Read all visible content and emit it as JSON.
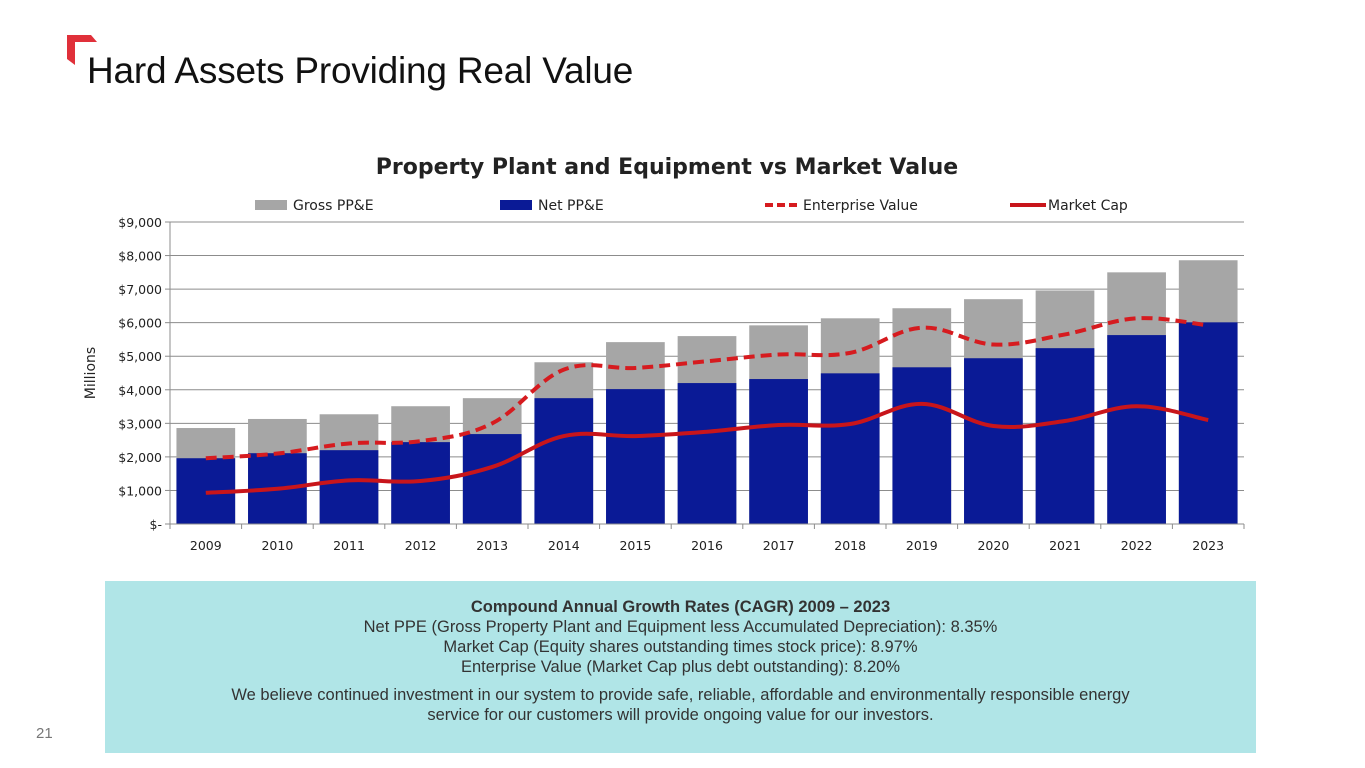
{
  "slide": {
    "title": "Hard Assets Providing Real Value",
    "page_number": "21",
    "accent_color": "#e0303a"
  },
  "chart_data": {
    "type": "bar",
    "title": "Property Plant and Equipment vs Market Value",
    "xlabel": "",
    "ylabel": "Millions",
    "ylim": [
      0,
      9000
    ],
    "yticks": [
      0,
      1000,
      2000,
      3000,
      4000,
      5000,
      6000,
      7000,
      8000,
      9000
    ],
    "ytick_labels": [
      "$-",
      "$1,000",
      "$2,000",
      "$3,000",
      "$4,000",
      "$5,000",
      "$6,000",
      "$7,000",
      "$8,000",
      "$9,000"
    ],
    "grid": true,
    "legend_position": "top",
    "categories": [
      "2009",
      "2010",
      "2011",
      "2012",
      "2013",
      "2014",
      "2015",
      "2016",
      "2017",
      "2018",
      "2019",
      "2020",
      "2021",
      "2022",
      "2023"
    ],
    "series": [
      {
        "name": "Gross PP&E",
        "kind": "bar",
        "color": "#a6a6a6",
        "values": [
          2860,
          3130,
          3270,
          3510,
          3750,
          4820,
          5420,
          5600,
          5920,
          6130,
          6430,
          6700,
          6960,
          7500,
          7860
        ]
      },
      {
        "name": "Net PP&E",
        "kind": "bar",
        "color": "#0a1a96",
        "values": [
          1960,
          2110,
          2200,
          2440,
          2680,
          3750,
          4020,
          4200,
          4320,
          4490,
          4670,
          4940,
          5240,
          5630,
          6010
        ]
      },
      {
        "name": "Enterprise Value",
        "kind": "line-dashed",
        "color": "#d61b1f",
        "values": [
          1960,
          2100,
          2400,
          2470,
          3000,
          4600,
          4650,
          4850,
          5050,
          5100,
          5850,
          5350,
          5650,
          6130,
          5920
        ]
      },
      {
        "name": "Market Cap",
        "kind": "line",
        "color": "#c8151b",
        "values": [
          930,
          1050,
          1300,
          1280,
          1700,
          2620,
          2620,
          2750,
          2950,
          2980,
          3580,
          2920,
          3070,
          3510,
          3100
        ]
      }
    ]
  },
  "cagr": {
    "heading": "Compound Annual Growth Rates (CAGR) 2009 – 2023",
    "lines": [
      "Net PPE (Gross Property Plant and Equipment less Accumulated Depreciation): 8.35%",
      "Market Cap (Equity shares outstanding times stock price): 8.97%",
      "Enterprise Value (Market Cap plus debt outstanding): 8.20%"
    ],
    "statement_line1": "We believe continued investment in our system to provide safe, reliable, affordable  and environmentally responsible energy",
    "statement_line2": "service for our customers will provide ongoing value for our investors."
  }
}
